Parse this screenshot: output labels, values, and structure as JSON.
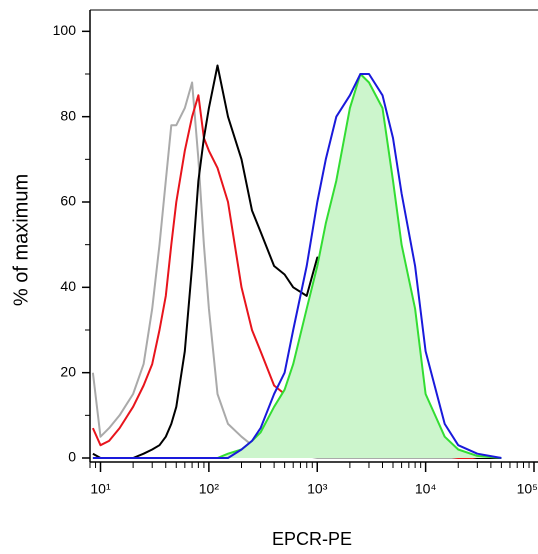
{
  "chart_data": {
    "type": "histogram-overlay",
    "xlabel": "EPCR-PE",
    "ylabel": "% of maximum",
    "xscale": "log",
    "xlim": [
      8,
      100000
    ],
    "ylim": [
      0,
      105
    ],
    "xticks": [
      {
        "value": 10,
        "label": "10¹"
      },
      {
        "value": 100,
        "label": "10²"
      },
      {
        "value": 1000,
        "label": "10³"
      },
      {
        "value": 10000,
        "label": "10⁴"
      },
      {
        "value": 100000,
        "label": "10⁵"
      }
    ],
    "yticks": [
      0,
      20,
      40,
      60,
      80,
      100
    ],
    "x": [
      8.5,
      10,
      12,
      15,
      20,
      25,
      30,
      35,
      40,
      45,
      50,
      60,
      70,
      80,
      90,
      100,
      120,
      150,
      200,
      250,
      300,
      400,
      500,
      600,
      800,
      1000,
      1200,
      1500,
      2000,
      2500,
      3000,
      4000,
      5000,
      6000,
      8000,
      10000,
      15000,
      20000,
      30000,
      50000
    ],
    "series": [
      {
        "color": "#aaaaaa",
        "fill": false,
        "values": [
          20,
          5,
          7,
          10,
          15,
          22,
          35,
          50,
          65,
          78,
          78,
          82,
          88,
          70,
          50,
          35,
          15,
          8,
          5,
          3,
          3,
          4,
          2,
          1,
          0.5,
          0,
          0,
          0,
          0,
          0,
          0,
          0,
          0,
          0,
          0,
          0,
          0,
          0,
          0,
          0
        ]
      },
      {
        "color": "#e8141c",
        "fill": false,
        "values": [
          7,
          3,
          4,
          7,
          12,
          17,
          22,
          30,
          38,
          50,
          60,
          72,
          80,
          85,
          75,
          72,
          68,
          60,
          40,
          30,
          25,
          17,
          15,
          14,
          15,
          13,
          13,
          13,
          12,
          10,
          8,
          6,
          4,
          3,
          2,
          1,
          0.5,
          0,
          0,
          0
        ]
      },
      {
        "color": "#000000",
        "fill": false,
        "values": [
          1,
          0,
          0,
          0,
          0,
          1,
          2,
          3,
          5,
          8,
          12,
          25,
          45,
          65,
          75,
          82,
          92,
          80,
          70,
          58,
          53,
          45,
          43,
          40,
          38,
          47,
          42,
          35,
          28,
          22,
          18,
          12,
          8,
          6,
          4,
          3,
          2,
          1,
          0,
          0
        ]
      },
      {
        "color": "#33dd33",
        "fill": "#ccf5cc",
        "values": [
          0,
          0,
          0,
          0,
          0,
          0,
          0,
          0,
          0,
          0,
          0,
          0,
          0,
          0,
          0,
          0,
          0,
          1,
          2,
          4,
          6,
          12,
          16,
          22,
          35,
          45,
          55,
          65,
          82,
          90,
          88,
          82,
          65,
          50,
          35,
          15,
          5,
          2,
          0.5,
          0
        ]
      },
      {
        "color": "#1a1adb",
        "fill": false,
        "values": [
          0,
          0,
          0,
          0,
          0,
          0,
          0,
          0,
          0,
          0,
          0,
          0,
          0,
          0,
          0,
          0,
          0,
          0,
          2,
          4,
          7,
          15,
          20,
          30,
          45,
          60,
          70,
          80,
          85,
          90,
          90,
          85,
          75,
          62,
          45,
          25,
          8,
          3,
          1,
          0
        ]
      }
    ]
  }
}
